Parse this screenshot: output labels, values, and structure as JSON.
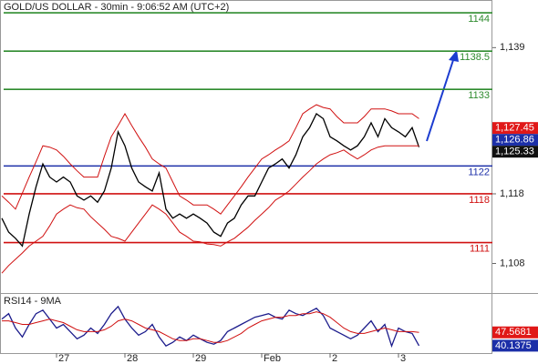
{
  "chart_data": [
    {
      "type": "line",
      "title": "GOLD/US DOLLAR - 30min - 9:06:52 AM (UTC+2)",
      "categories": [
        null,
        null,
        null,
        null,
        null,
        null,
        null,
        null,
        "27",
        null,
        null,
        null,
        null,
        null,
        null,
        null,
        null,
        null,
        "28",
        null,
        null,
        null,
        null,
        null,
        null,
        null,
        null,
        null,
        "29",
        null,
        null,
        null,
        null,
        null,
        null,
        null,
        null,
        null,
        "Feb",
        null,
        null,
        null,
        null,
        null,
        null,
        null,
        null,
        null,
        "2",
        null,
        null,
        null,
        null,
        null,
        null,
        null,
        null,
        null,
        "3",
        null,
        null,
        null
      ],
      "series": [
        {
          "color": "#000000",
          "values": [
            1114.5,
            1112.5,
            1111.6,
            1110.5,
            1115.1,
            1119.0,
            1122.3,
            1120.4,
            1119.7,
            1120.4,
            1119.7,
            1117.7,
            1117.1,
            1117.7,
            1116.8,
            1118.4,
            1121.7,
            1126.9,
            1124.9,
            1121.7,
            1119.7,
            1119.0,
            1118.4,
            1121.0,
            1115.8,
            1114.5,
            1115.1,
            1114.5,
            1115.1,
            1114.5,
            1113.8,
            1112.5,
            1111.9,
            1113.8,
            1114.5,
            1116.4,
            1117.7,
            1117.7,
            1119.7,
            1121.7,
            1122.3,
            1123.0,
            1121.7,
            1123.6,
            1126.2,
            1127.5,
            1129.5,
            1128.8,
            1126.2,
            1125.6,
            1124.9,
            1124.3,
            1124.9,
            1126.2,
            1128.2,
            1126.2,
            1128.8,
            1127.5,
            1126.9,
            1126.2,
            1127.5,
            1124.7
          ]
        },
        {
          "color": "#d01010",
          "values": [
            1117.7,
            1116.8,
            1115.8,
            1118.1,
            1120.4,
            1122.6,
            1124.9,
            1124.7,
            1124.3,
            1123.4,
            1122.3,
            1121.3,
            1120.4,
            1120.4,
            1120.4,
            1123.4,
            1126.2,
            1127.8,
            1129.5,
            1127.8,
            1126.2,
            1124.7,
            1123.0,
            1122.3,
            1121.7,
            1119.7,
            1117.7,
            1117.1,
            1116.4,
            1116.4,
            1116.4,
            1115.8,
            1115.1,
            1116.4,
            1117.7,
            1119.0,
            1120.4,
            1121.7,
            1123.0,
            1123.6,
            1124.3,
            1124.9,
            1125.6,
            1127.5,
            1129.5,
            1130.2,
            1130.8,
            1130.4,
            1130.2,
            1129.1,
            1128.2,
            1128.2,
            1128.2,
            1129.1,
            1130.2,
            1130.2,
            1130.2,
            1129.9,
            1129.5,
            1129.5,
            1129.5,
            1128.8
          ]
        },
        {
          "color": "#d01010",
          "values": [
            1106.6,
            1107.7,
            1108.6,
            1109.5,
            1110.5,
            1111.2,
            1111.9,
            1113.4,
            1115.1,
            1115.8,
            1116.4,
            1116.0,
            1115.8,
            1114.7,
            1113.8,
            1112.9,
            1111.9,
            1111.6,
            1111.2,
            1112.5,
            1113.8,
            1115.1,
            1116.4,
            1115.8,
            1115.1,
            1113.8,
            1112.5,
            1111.9,
            1111.2,
            1111.1,
            1110.8,
            1110.7,
            1110.5,
            1111.1,
            1111.6,
            1112.4,
            1113.2,
            1114.2,
            1115.1,
            1116.0,
            1117.1,
            1117.7,
            1118.4,
            1119.4,
            1120.4,
            1121.3,
            1122.3,
            1123.0,
            1123.6,
            1123.9,
            1124.3,
            1123.6,
            1123.0,
            1123.6,
            1124.3,
            1124.7,
            1124.9,
            1124.9,
            1124.9,
            1124.9,
            1124.9,
            1124.9
          ]
        }
      ],
      "levels": [
        {
          "value": 1144,
          "color": "#2e8b2e"
        },
        {
          "value": 1138.5,
          "color": "#2e8b2e"
        },
        {
          "value": 1133,
          "color": "#2e8b2e"
        },
        {
          "value": 1122,
          "color": "#1c2fa8"
        },
        {
          "value": 1118,
          "color": "#d01010"
        },
        {
          "value": 1111,
          "color": "#d01010"
        }
      ],
      "price_labels": [
        {
          "value": 1127.45,
          "label": "1,127.45",
          "color": "#e01818"
        },
        {
          "value": 1126.86,
          "label": "1,126.86",
          "color": "#1c2fa8"
        },
        {
          "value": 1125.33,
          "label": "1,125.33",
          "color": "#111111"
        }
      ],
      "ylim": [
        1103.75,
        1145.84
      ],
      "yticks": [
        {
          "value": 1139,
          "label": "1,139"
        },
        {
          "value": 1118,
          "label": "1,118"
        },
        {
          "value": 1108,
          "label": "1,108"
        }
      ]
    },
    {
      "type": "line",
      "title": "RSI14 - 9MA",
      "series": [
        {
          "color": "#1c1c8c",
          "values": [
            55,
            58,
            50,
            45,
            52,
            58,
            60,
            55,
            50,
            52,
            48,
            44,
            46,
            50,
            47,
            52,
            58,
            62,
            55,
            50,
            46,
            48,
            52,
            45,
            40,
            42,
            45,
            43,
            46,
            44,
            42,
            41,
            43,
            48,
            50,
            52,
            54,
            56,
            57,
            58,
            56,
            55,
            60,
            58,
            57,
            59,
            61,
            57,
            50,
            48,
            46,
            44,
            46,
            50,
            54,
            48,
            52,
            40,
            50,
            48,
            47,
            40.1375
          ],
          "box": "#1c2fa8"
        },
        {
          "color": "#d01010",
          "values": [
            54,
            54,
            53,
            52,
            52,
            53,
            54,
            55,
            54,
            53,
            51,
            49,
            48,
            48,
            48,
            49,
            51,
            54,
            55,
            54,
            52,
            50,
            49,
            48,
            46,
            44,
            43,
            43,
            44,
            44,
            43,
            42,
            42,
            43,
            45,
            47,
            50,
            52,
            54,
            55,
            56,
            56,
            57,
            57,
            58,
            58,
            59,
            58,
            56,
            53,
            50,
            48,
            47,
            47,
            48,
            49,
            50,
            49,
            48,
            48,
            48,
            47.5681
          ],
          "box": "#e01818"
        }
      ],
      "ylim": [
        35,
        68
      ]
    }
  ]
}
